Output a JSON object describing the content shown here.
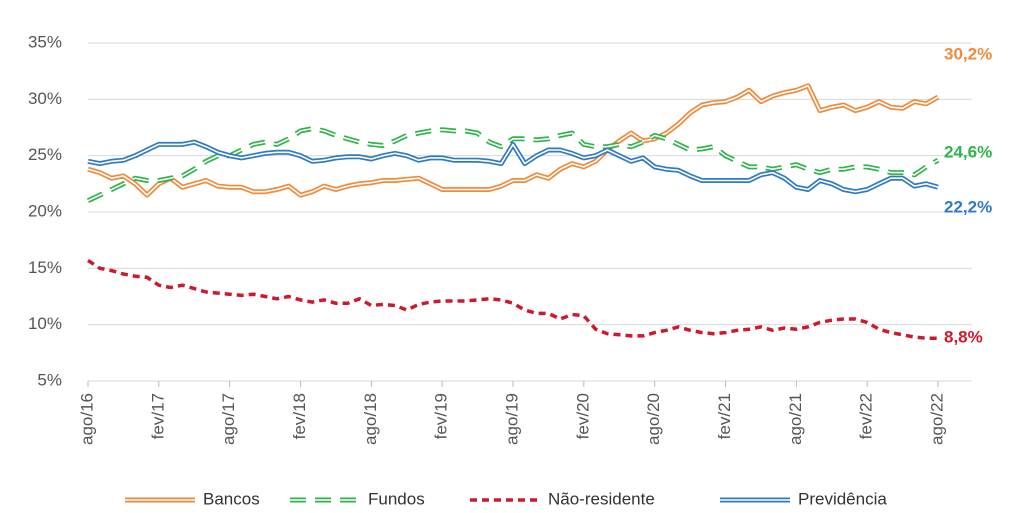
{
  "chart_data": {
    "type": "line",
    "categories": [
      "ago/16",
      null,
      null,
      null,
      null,
      null,
      "fev/17",
      null,
      null,
      null,
      null,
      null,
      "ago/17",
      null,
      null,
      null,
      null,
      null,
      "fev/18",
      null,
      null,
      null,
      null,
      null,
      "ago/18",
      null,
      null,
      null,
      null,
      null,
      "fev/19",
      null,
      null,
      null,
      null,
      null,
      "ago/19",
      null,
      null,
      null,
      null,
      null,
      "fev/20",
      null,
      null,
      null,
      null,
      null,
      "ago/20",
      null,
      null,
      null,
      null,
      null,
      "fev/21",
      null,
      null,
      null,
      null,
      null,
      "ago/21",
      null,
      null,
      null,
      null,
      null,
      "fev/22",
      null,
      null,
      null,
      null,
      null,
      "ago/22"
    ],
    "ylim": [
      5,
      35
    ],
    "yticks": [
      {
        "value": 5,
        "label": "5%"
      },
      {
        "value": 10,
        "label": "10%"
      },
      {
        "value": 15,
        "label": "15%"
      },
      {
        "value": 20,
        "label": "20%"
      },
      {
        "value": 25,
        "label": "25%"
      },
      {
        "value": 30,
        "label": "30%"
      },
      {
        "value": 35,
        "label": "35%"
      }
    ],
    "grid": true,
    "legend": "bottom",
    "series": [
      {
        "name": "Bancos",
        "color": "#f08a3c",
        "line_style": "double",
        "values": [
          23.8,
          23.5,
          23.0,
          23.2,
          22.5,
          21.5,
          22.5,
          23.0,
          22.2,
          22.5,
          22.8,
          22.3,
          22.2,
          22.2,
          21.8,
          21.8,
          22.0,
          22.3,
          21.5,
          21.8,
          22.3,
          22.0,
          22.3,
          22.5,
          22.6,
          22.8,
          22.8,
          22.9,
          23.0,
          22.5,
          22.0,
          22.0,
          22.0,
          22.0,
          22.0,
          22.3,
          22.8,
          22.8,
          23.3,
          23.0,
          23.8,
          24.3,
          24.0,
          24.5,
          25.5,
          26.3,
          27.0,
          26.3,
          26.5,
          27.0,
          27.8,
          28.8,
          29.5,
          29.7,
          29.8,
          30.2,
          30.8,
          29.8,
          30.3,
          30.6,
          30.8,
          31.2,
          29.0,
          29.3,
          29.5,
          29.0,
          29.3,
          29.8,
          29.3,
          29.2,
          29.8,
          29.6,
          30.2
        ],
        "value_labels": [
          null,
          null,
          null,
          null,
          null,
          null,
          null,
          null,
          null,
          null,
          null,
          null,
          null,
          null,
          null,
          null,
          null,
          null,
          null,
          null,
          null,
          null,
          null,
          null,
          null,
          null,
          null,
          null,
          null,
          null,
          null,
          null,
          null,
          null,
          null,
          null,
          null,
          null,
          null,
          null,
          null,
          null,
          null,
          null,
          null,
          null,
          null,
          null,
          null,
          null,
          null,
          null,
          null,
          null,
          null,
          null,
          null,
          null,
          null,
          null,
          null,
          null,
          null,
          null,
          null,
          null,
          null,
          null,
          null,
          null,
          null,
          null,
          "30,2%"
        ]
      },
      {
        "name": "Fundos",
        "color": "#2fb34a",
        "line_style": "double-dashed",
        "values": [
          21.0,
          21.5,
          22.0,
          22.5,
          23.0,
          22.8,
          22.8,
          23.0,
          23.2,
          23.8,
          24.5,
          25.0,
          25.0,
          25.5,
          26.0,
          26.2,
          26.0,
          26.5,
          27.2,
          27.4,
          27.2,
          26.8,
          26.5,
          26.2,
          26.0,
          25.9,
          26.3,
          26.8,
          27.0,
          27.2,
          27.3,
          27.2,
          27.2,
          27.0,
          26.2,
          25.8,
          26.5,
          26.5,
          26.4,
          26.5,
          26.8,
          27.0,
          26.0,
          25.8,
          25.8,
          26.0,
          25.8,
          26.2,
          26.8,
          26.5,
          26.0,
          25.5,
          25.6,
          25.8,
          25.0,
          24.5,
          24.0,
          24.0,
          23.8,
          24.0,
          24.2,
          23.8,
          23.5,
          23.8,
          23.8,
          24.0,
          24.0,
          23.8,
          23.5,
          23.5,
          23.3,
          24.0,
          24.6
        ],
        "value_labels": [
          null,
          null,
          null,
          null,
          null,
          null,
          null,
          null,
          null,
          null,
          null,
          null,
          null,
          null,
          null,
          null,
          null,
          null,
          null,
          null,
          null,
          null,
          null,
          null,
          null,
          null,
          null,
          null,
          null,
          null,
          null,
          null,
          null,
          null,
          null,
          null,
          null,
          null,
          null,
          null,
          null,
          null,
          null,
          null,
          null,
          null,
          null,
          null,
          null,
          null,
          null,
          null,
          null,
          null,
          null,
          null,
          null,
          null,
          null,
          null,
          null,
          null,
          null,
          null,
          null,
          null,
          null,
          null,
          null,
          null,
          null,
          null,
          "24,6%"
        ]
      },
      {
        "name": "Não-residente",
        "color": "#d0182c",
        "line_style": "dashed",
        "values": [
          15.7,
          15.0,
          14.8,
          14.5,
          14.3,
          14.2,
          13.5,
          13.3,
          13.5,
          13.2,
          12.9,
          12.8,
          12.7,
          12.6,
          12.7,
          12.5,
          12.3,
          12.5,
          12.2,
          12.0,
          12.2,
          11.9,
          11.9,
          12.3,
          11.7,
          11.8,
          11.7,
          11.3,
          11.8,
          12.0,
          12.1,
          12.1,
          12.1,
          12.2,
          12.3,
          12.2,
          11.9,
          11.3,
          11.0,
          11.0,
          10.5,
          10.9,
          10.8,
          9.6,
          9.2,
          9.1,
          9.0,
          9.0,
          9.3,
          9.5,
          9.8,
          9.5,
          9.3,
          9.2,
          9.3,
          9.5,
          9.6,
          9.8,
          9.5,
          9.7,
          9.6,
          9.8,
          10.2,
          10.4,
          10.5,
          10.5,
          10.2,
          9.6,
          9.3,
          9.1,
          8.9,
          8.8,
          8.8
        ],
        "value_labels": [
          null,
          null,
          null,
          null,
          null,
          null,
          null,
          null,
          null,
          null,
          null,
          null,
          null,
          null,
          null,
          null,
          null,
          null,
          null,
          null,
          null,
          null,
          null,
          null,
          null,
          null,
          null,
          null,
          null,
          null,
          null,
          null,
          null,
          null,
          null,
          null,
          null,
          null,
          null,
          null,
          null,
          null,
          null,
          null,
          null,
          null,
          null,
          null,
          null,
          null,
          null,
          null,
          null,
          null,
          null,
          null,
          null,
          null,
          null,
          null,
          null,
          null,
          null,
          null,
          null,
          null,
          null,
          null,
          null,
          null,
          null,
          null,
          "8,8%"
        ]
      },
      {
        "name": "Previdência",
        "color": "#2f7ac4",
        "line_style": "double",
        "values": [
          24.5,
          24.3,
          24.5,
          24.6,
          25.0,
          25.5,
          26.0,
          26.0,
          26.0,
          26.2,
          25.8,
          25.3,
          25.0,
          24.8,
          25.0,
          25.2,
          25.3,
          25.3,
          25.0,
          24.5,
          24.6,
          24.8,
          24.9,
          24.9,
          24.7,
          25.0,
          25.2,
          25.0,
          24.6,
          24.8,
          24.8,
          24.6,
          24.6,
          24.6,
          24.5,
          24.3,
          26.0,
          24.3,
          25.0,
          25.5,
          25.5,
          25.2,
          24.8,
          25.0,
          25.5,
          25.0,
          24.5,
          24.8,
          24.0,
          23.8,
          23.7,
          23.2,
          22.8,
          22.8,
          22.8,
          22.8,
          22.8,
          23.3,
          23.5,
          23.0,
          22.2,
          22.0,
          22.8,
          22.5,
          22.0,
          21.8,
          22.0,
          22.5,
          23.0,
          23.0,
          22.3,
          22.5,
          22.2
        ],
        "value_labels": [
          null,
          null,
          null,
          null,
          null,
          null,
          null,
          null,
          null,
          null,
          null,
          null,
          null,
          null,
          null,
          null,
          null,
          null,
          null,
          null,
          null,
          null,
          null,
          null,
          null,
          null,
          null,
          null,
          null,
          null,
          null,
          null,
          null,
          null,
          null,
          null,
          null,
          null,
          null,
          null,
          null,
          null,
          null,
          null,
          null,
          null,
          null,
          null,
          null,
          null,
          null,
          null,
          null,
          null,
          null,
          null,
          null,
          null,
          null,
          null,
          null,
          null,
          null,
          null,
          null,
          null,
          null,
          null,
          null,
          null,
          null,
          null,
          "22,2%"
        ]
      }
    ]
  }
}
